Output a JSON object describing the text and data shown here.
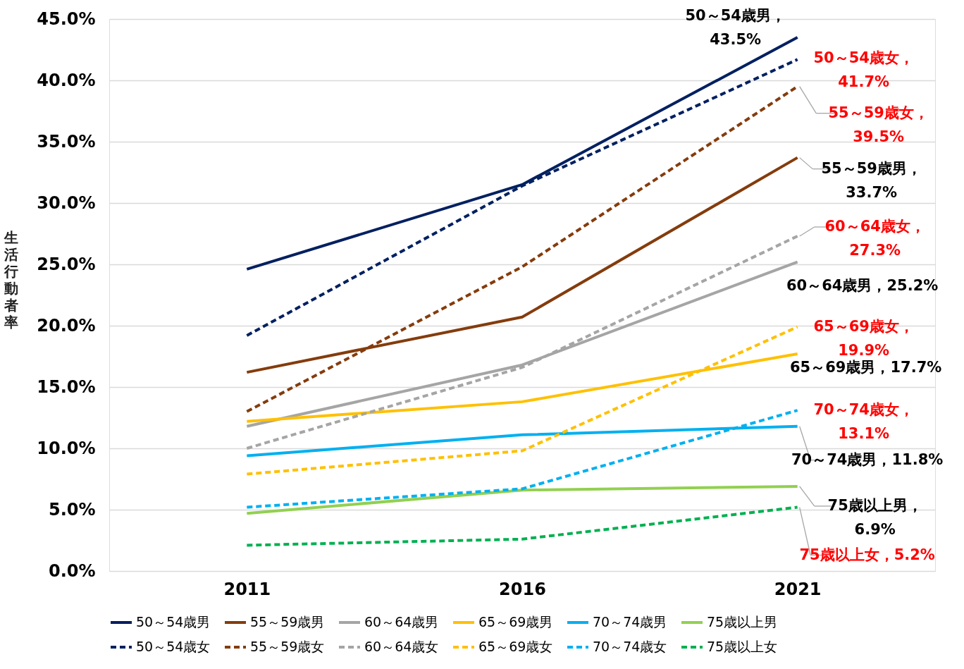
{
  "chart_data": {
    "type": "line",
    "ylabel": "生活行動者率",
    "categories": [
      "2011",
      "2016",
      "2021"
    ],
    "ylim": [
      0,
      45
    ],
    "yticks": [
      {
        "value": 0,
        "label": "0.0%"
      },
      {
        "value": 5,
        "label": "5.0%"
      },
      {
        "value": 10,
        "label": "10.0%"
      },
      {
        "value": 15,
        "label": "15.0%"
      },
      {
        "value": 20,
        "label": "20.0%"
      },
      {
        "value": 25,
        "label": "25.0%"
      },
      {
        "value": 30,
        "label": "30.0%"
      },
      {
        "value": 35,
        "label": "35.0%"
      },
      {
        "value": 40,
        "label": "40.0%"
      },
      {
        "value": 45,
        "label": "45.0%"
      }
    ],
    "grid": "y",
    "legend": "bottom",
    "marker": "none",
    "series": [
      {
        "name": "50～54歳男",
        "color": "#002060",
        "line_style": "solid",
        "values": [
          24.6,
          31.5,
          43.5
        ],
        "value_labels": [
          null,
          null,
          "50～54歳男，43.5%"
        ]
      },
      {
        "name": "55～59歳男",
        "color": "#843c0c",
        "line_style": "solid",
        "values": [
          16.2,
          20.7,
          33.7
        ],
        "value_labels": [
          null,
          null,
          "55～59歳男，33.7%"
        ]
      },
      {
        "name": "60～64歳男",
        "color": "#a5a5a5",
        "line_style": "solid",
        "values": [
          11.8,
          16.8,
          25.2
        ],
        "value_labels": [
          null,
          null,
          "60～64歳男，25.2%"
        ]
      },
      {
        "name": "65～69歳男",
        "color": "#ffc000",
        "line_style": "solid",
        "values": [
          12.2,
          13.8,
          17.7
        ],
        "value_labels": [
          null,
          null,
          "65～69歳男，17.7%"
        ]
      },
      {
        "name": "70～74歳男",
        "color": "#00b0f0",
        "line_style": "solid",
        "values": [
          9.4,
          11.1,
          11.8
        ],
        "value_labels": [
          null,
          null,
          "70～74歳男，11.8%"
        ]
      },
      {
        "name": "75歳以上男",
        "color": "#92d050",
        "line_style": "solid",
        "values": [
          4.7,
          6.6,
          6.9
        ],
        "value_labels": [
          null,
          null,
          "75歳以上男，6.9%"
        ]
      },
      {
        "name": "50～54歳女",
        "color": "#002060",
        "line_style": "dashed",
        "values": [
          19.2,
          31.4,
          41.7
        ],
        "value_labels": [
          null,
          null,
          "50～54歳女，41.7%"
        ]
      },
      {
        "name": "55～59歳女",
        "color": "#843c0c",
        "line_style": "dashed",
        "values": [
          13.0,
          24.8,
          39.5
        ],
        "value_labels": [
          null,
          null,
          "55～59歳女，39.5%"
        ]
      },
      {
        "name": "60～64歳女",
        "color": "#a5a5a5",
        "line_style": "dashed",
        "values": [
          10.0,
          16.6,
          27.3
        ],
        "value_labels": [
          null,
          null,
          "60～64歳女，27.3%"
        ]
      },
      {
        "name": "65～69歳女",
        "color": "#ffc000",
        "line_style": "dashed",
        "values": [
          7.9,
          9.8,
          19.9
        ],
        "value_labels": [
          null,
          null,
          "65～69歳女，19.9%"
        ]
      },
      {
        "name": "70～74歳女",
        "color": "#00b0f0",
        "line_style": "dashed",
        "values": [
          5.2,
          6.7,
          13.1
        ],
        "value_labels": [
          null,
          null,
          "70～74歳女，13.1%"
        ]
      },
      {
        "name": "75歳以上女",
        "color": "#00b050",
        "line_style": "dashed",
        "values": [
          2.1,
          2.6,
          5.2
        ],
        "value_labels": [
          null,
          null,
          "75歳以上女，5.2%"
        ]
      }
    ]
  }
}
